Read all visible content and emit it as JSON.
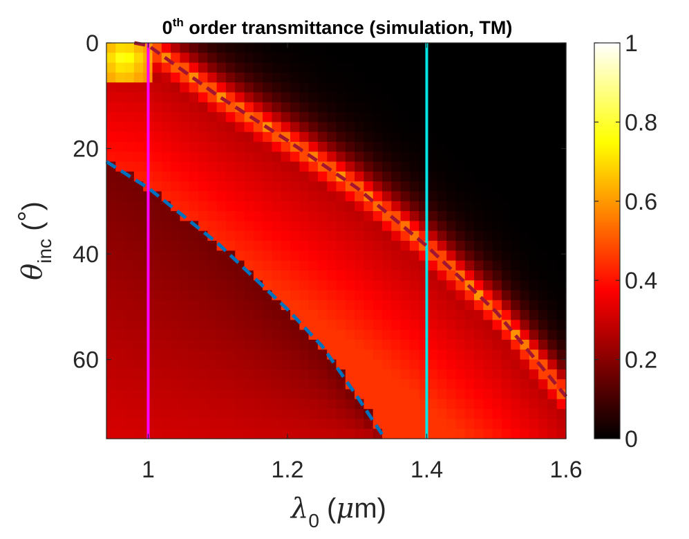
{
  "chart_data": {
    "type": "heatmap",
    "title_prefix": "0",
    "title_sup": "th",
    "title_rest": " order transmittance (simulation, TM)",
    "xlabel": {
      "symbol": "λ",
      "subscript": "0",
      "unit_open": " (",
      "unit_mu": "μ",
      "unit_rest": "m)"
    },
    "ylabel": {
      "symbol": "θ",
      "subscript": "inc",
      "unit_open": " (",
      "unit_deg": "°",
      "unit_close": ")"
    },
    "xlim": [
      0.94,
      1.6
    ],
    "ylim": [
      75,
      0
    ],
    "x_ticks": [
      1.0,
      1.2,
      1.4,
      1.6
    ],
    "x_tick_labels": [
      "1",
      "1.2",
      "1.4",
      "1.6"
    ],
    "y_ticks": [
      0,
      20,
      40,
      60
    ],
    "y_tick_labels": [
      "0",
      "20",
      "40",
      "60"
    ],
    "grid": {
      "nx": 50,
      "ny": 40
    },
    "colormap": "hot",
    "clim": [
      0,
      1
    ],
    "colorbar_ticks": [
      0,
      0.2,
      0.4,
      0.6,
      0.8,
      1
    ],
    "colorbar_tick_labels": [
      "0",
      "0.2",
      "0.4",
      "0.6",
      "0.8",
      "1"
    ],
    "value_regions": [
      {
        "name": "region below blue cutoff",
        "min_value": 0.12,
        "max_value": 0.3
      },
      {
        "name": "central band",
        "min_value": 0.3,
        "max_value": 0.45
      },
      {
        "name": "upper-left band",
        "min_value": 0.08,
        "max_value": 0.28
      },
      {
        "name": "resonance along maroon curve",
        "peak_value": 0.6
      },
      {
        "name": "upper-right region",
        "value": 0.0
      }
    ],
    "vertical_lines": [
      {
        "name": "magenta line",
        "x": 1.0,
        "color": "#ff00ff"
      },
      {
        "name": "cyan line",
        "x": 1.4,
        "color": "#00e6e6"
      }
    ],
    "dashed_curves": [
      {
        "name": "blue dashed cutoff",
        "color": "#0072bd",
        "points": [
          [
            0.94,
            22.5
          ],
          [
            1.0,
            27.5
          ],
          [
            1.1,
            38
          ],
          [
            1.2,
            50.5
          ],
          [
            1.25,
            57.5
          ],
          [
            1.3,
            67
          ],
          [
            1.34,
            75
          ]
        ]
      },
      {
        "name": "maroon dashed resonance",
        "color": "#a2142f",
        "points": [
          [
            0.98,
            0
          ],
          [
            1.0,
            0.5
          ],
          [
            1.1,
            10
          ],
          [
            1.2,
            18.5
          ],
          [
            1.3,
            27.5
          ],
          [
            1.4,
            38.5
          ],
          [
            1.5,
            51
          ],
          [
            1.6,
            67
          ]
        ]
      }
    ]
  }
}
